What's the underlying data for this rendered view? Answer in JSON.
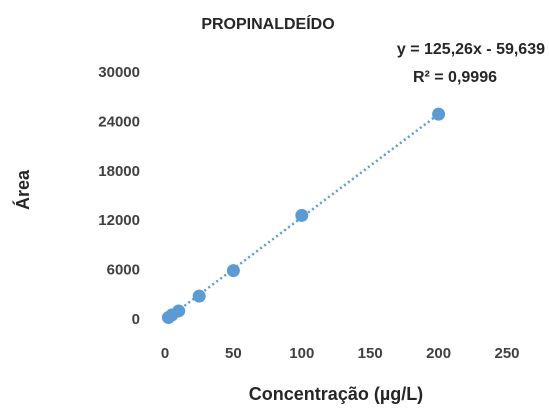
{
  "chart_data": {
    "type": "scatter",
    "title": "PROPINALDEÍDO",
    "annotations": [
      "y = 125,26x - 59,639",
      "R² = 0,9996"
    ],
    "x_label": "Concentração  (µg/L)",
    "y_label": "Área",
    "x": [
      2.5,
      5,
      10,
      25,
      50,
      100,
      200
    ],
    "values": [
      300,
      600,
      1100,
      2900,
      6000,
      12700,
      25000
    ],
    "color": "#5b9bd5",
    "trendline": {
      "slope": 125.26,
      "intercept": -59.639
    },
    "xlim": [
      0,
      250
    ],
    "xticks": [
      0,
      50,
      100,
      150,
      200,
      250
    ],
    "ylim": [
      0,
      30000
    ],
    "yticks": [
      0,
      6000,
      12000,
      18000,
      24000,
      30000
    ]
  }
}
